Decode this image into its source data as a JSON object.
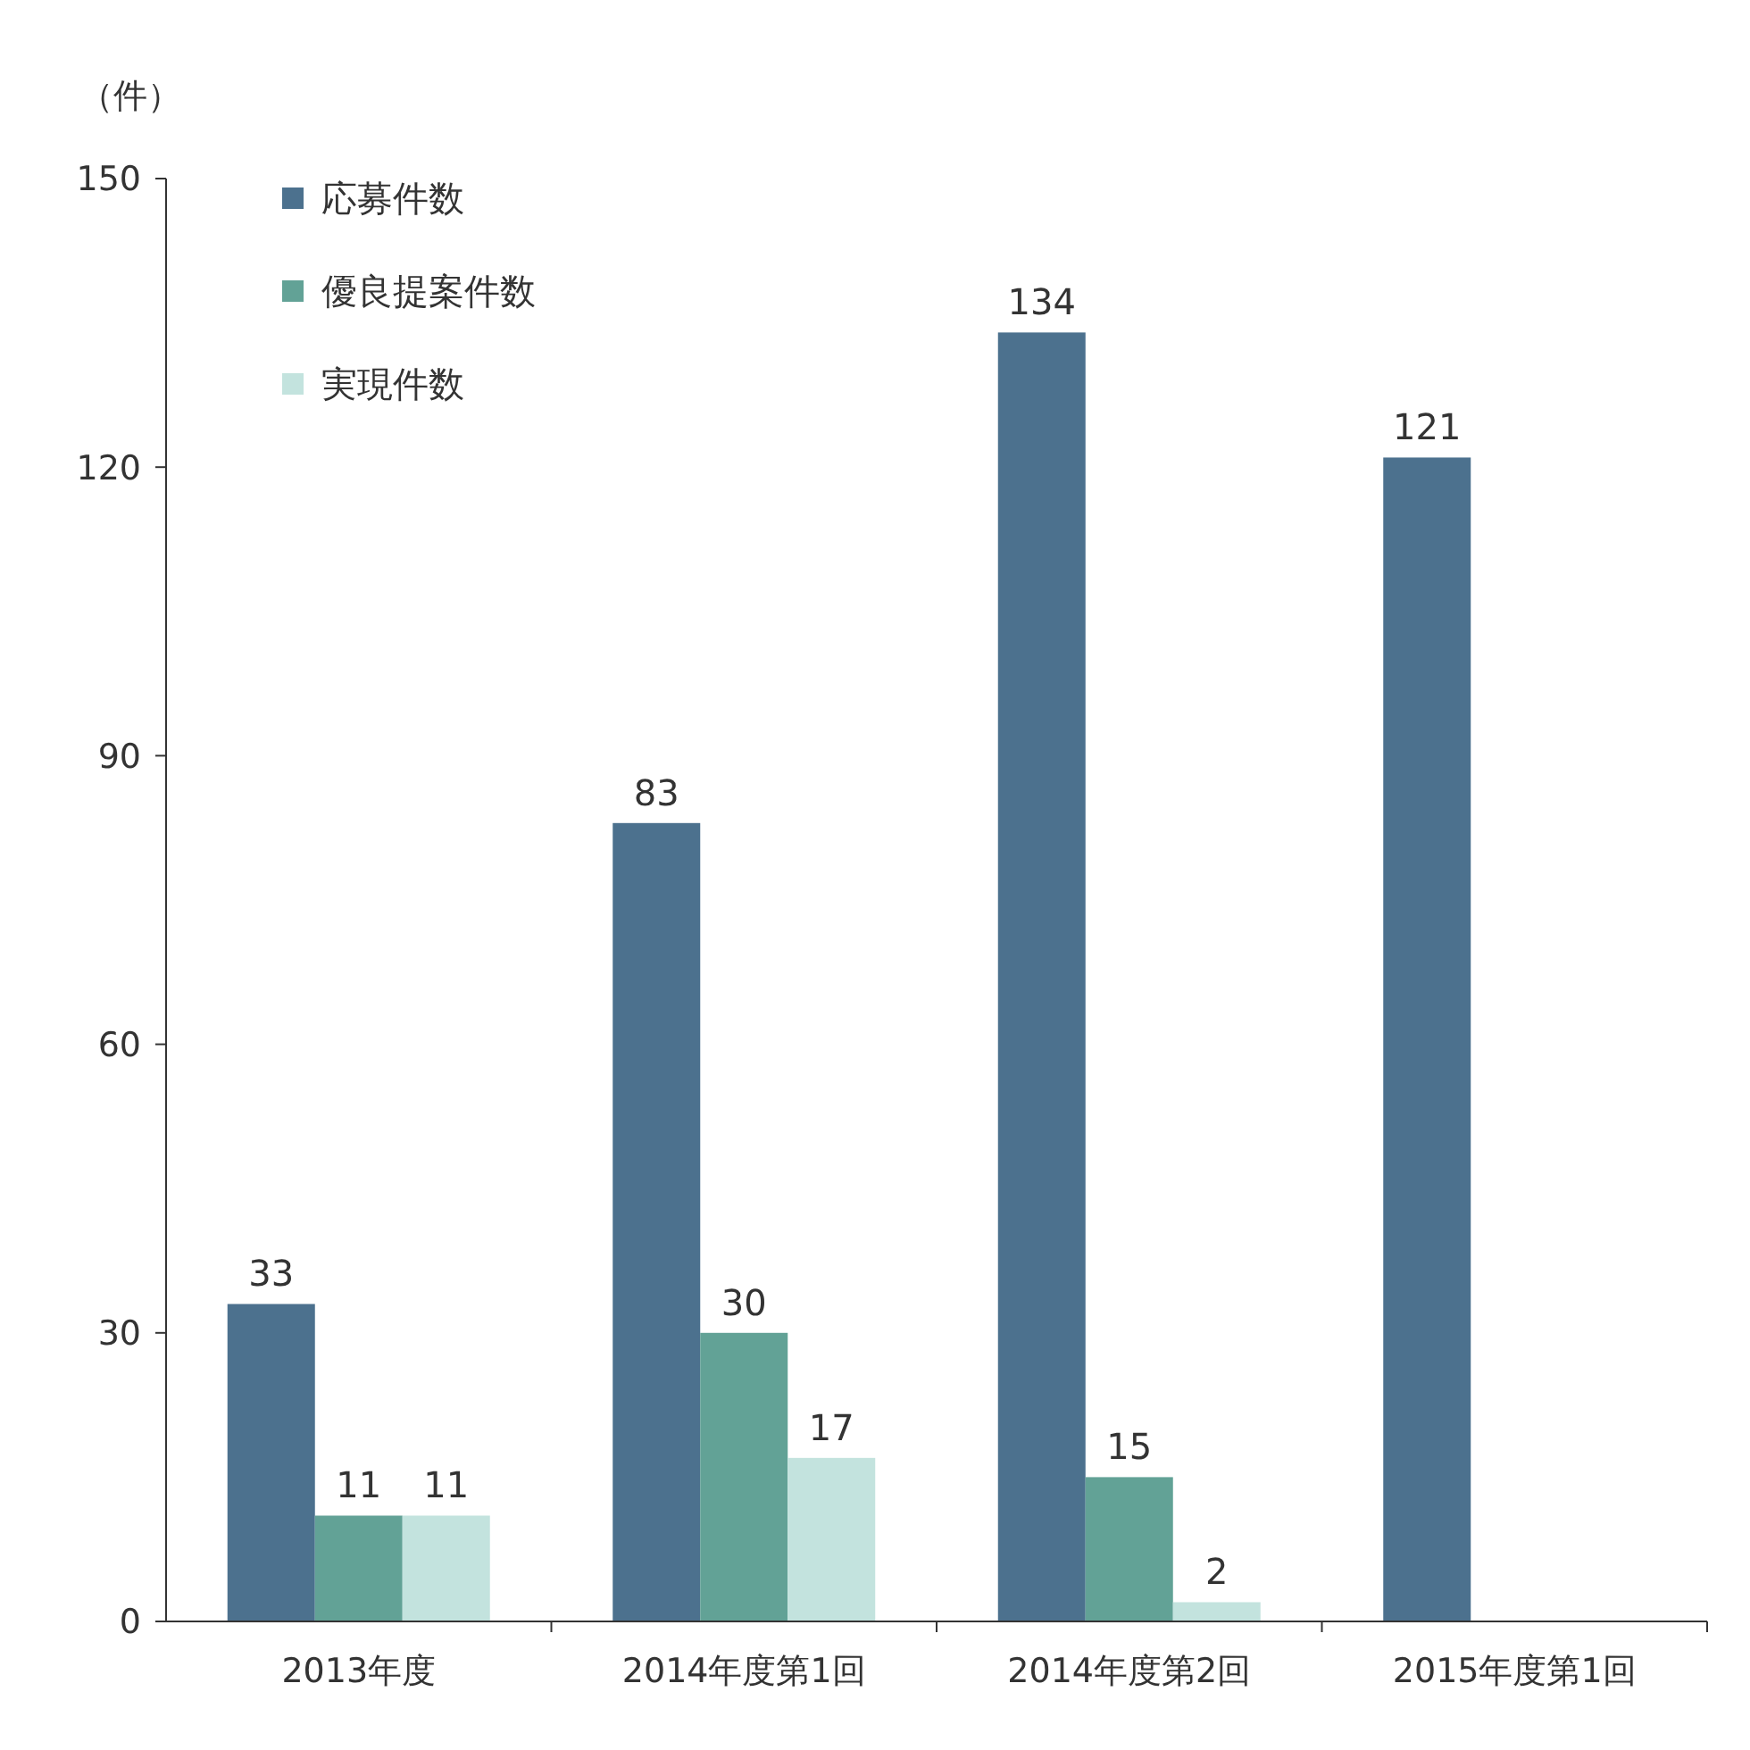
{
  "chart_data": {
    "type": "bar",
    "ylabel": "（件）",
    "categories": [
      "2013年度",
      "2014年度第1回",
      "2014年度第2回",
      "2015年度第1回"
    ],
    "series": [
      {
        "name": "応募件数",
        "color": "#4c718e",
        "values": [
          33,
          83,
          134,
          121
        ]
      },
      {
        "name": "優良提案件数",
        "color": "#62a296",
        "values": [
          11,
          30,
          15,
          null
        ]
      },
      {
        "name": "実現件数",
        "color": "#c3e3de",
        "values": [
          11,
          17,
          2,
          null
        ]
      }
    ],
    "ylim": [
      0,
      150
    ],
    "yticks": [
      0,
      30,
      60,
      90,
      120,
      150
    ],
    "grid": false,
    "legend": "top left",
    "data_labels": true
  }
}
